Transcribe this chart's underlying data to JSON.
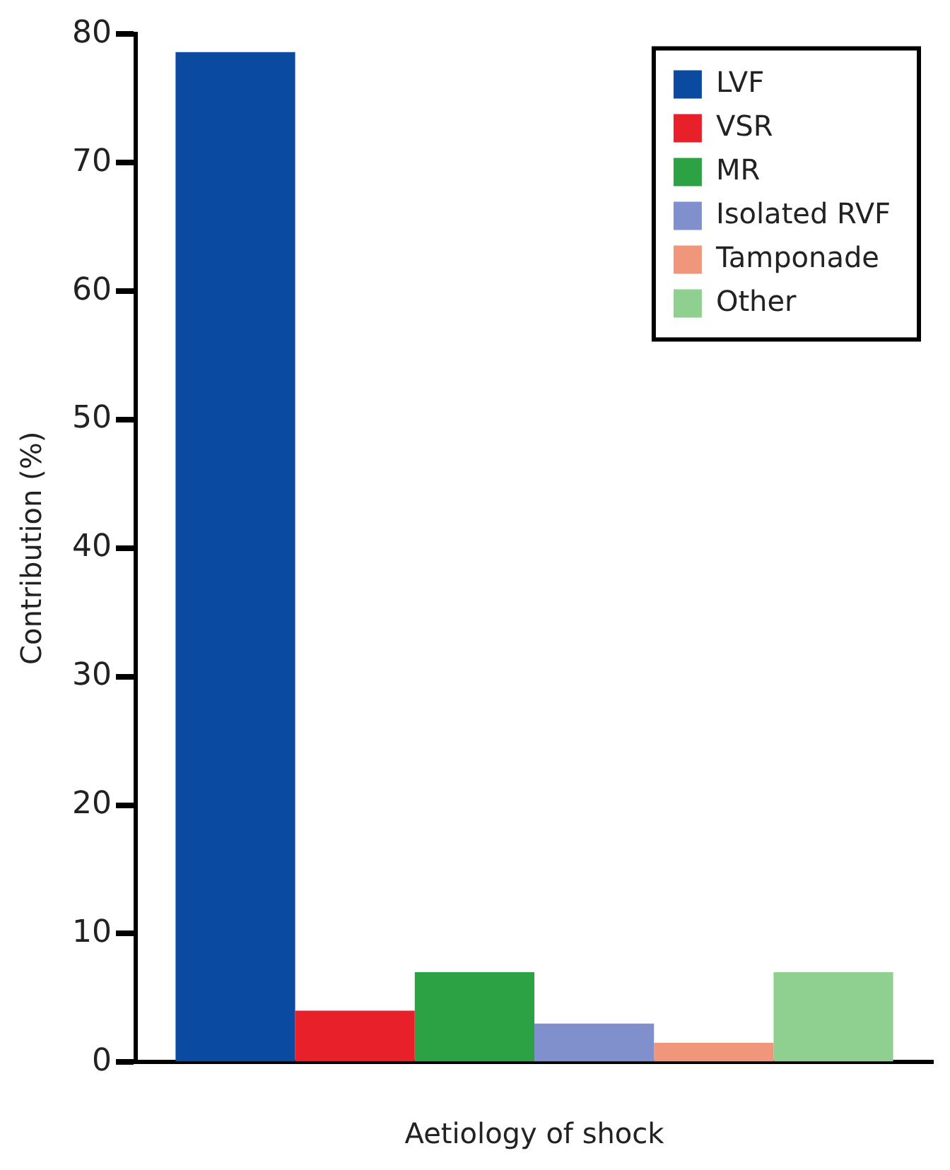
{
  "chart_data": {
    "type": "bar",
    "xlabel": "Aetiology of shock",
    "ylabel": "Contribution (%)",
    "categories": [
      null
    ],
    "series": [
      {
        "name": "LVF",
        "color": "#0a4aa0",
        "values": [
          78.6
        ]
      },
      {
        "name": "VSR",
        "color": "#e8202a",
        "values": [
          4
        ]
      },
      {
        "name": "MR",
        "color": "#2ca244",
        "values": [
          7
        ]
      },
      {
        "name": "Isolated RVF",
        "color": "#8090cc",
        "values": [
          3
        ]
      },
      {
        "name": "Tamponade",
        "color": "#f0967a",
        "values": [
          1.5
        ]
      },
      {
        "name": "Other",
        "color": "#8fcf8f",
        "values": [
          7
        ]
      }
    ],
    "ylim": [
      0,
      80
    ],
    "yticks": [
      0,
      10,
      20,
      30,
      40,
      50,
      60,
      70,
      80
    ],
    "grid": false,
    "legend": "top right"
  }
}
